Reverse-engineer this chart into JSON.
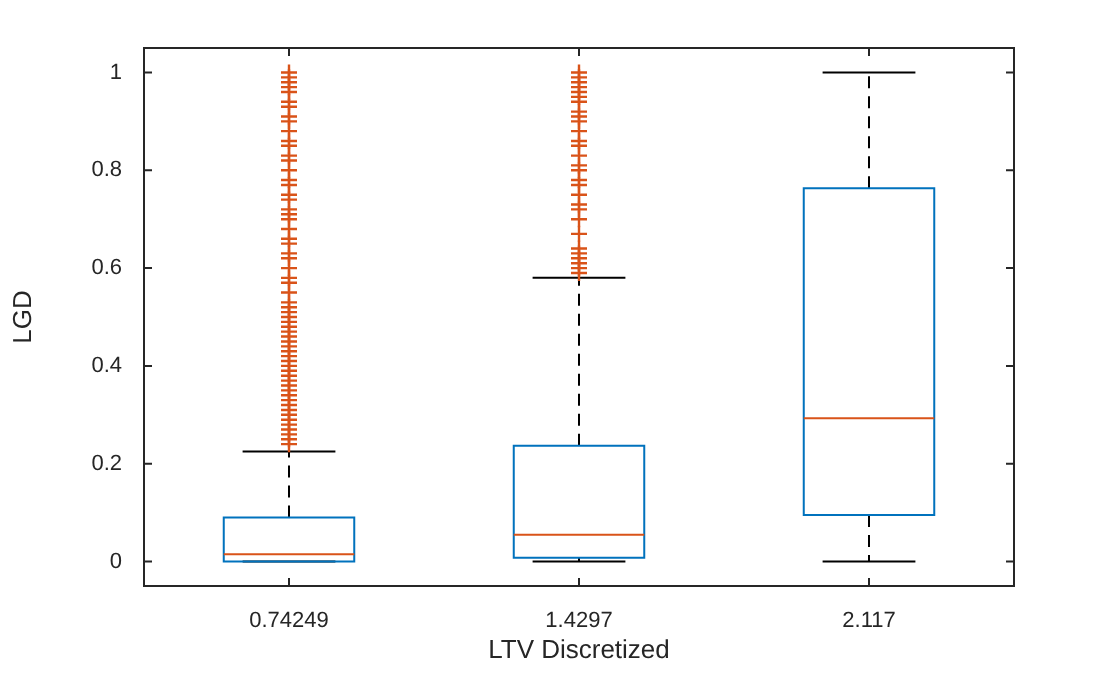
{
  "chart_data": {
    "type": "box",
    "xlabel": "LTV Discretized",
    "ylabel": "LGD",
    "categories": [
      "0.74249",
      "1.4297",
      "2.117"
    ],
    "color": "#0072bd",
    "marker": "cross",
    "ylim": [
      -0.05,
      1.05
    ],
    "yticks": [
      0,
      0.2,
      0.4,
      0.6,
      0.8,
      1
    ],
    "boxes": [
      {
        "low": 0,
        "q1": 0,
        "median": 0.015,
        "q3": 0.09,
        "high": 0.225,
        "outliers": [
          0.24,
          0.25,
          0.26,
          0.27,
          0.28,
          0.29,
          0.3,
          0.31,
          0.32,
          0.33,
          0.34,
          0.35,
          0.36,
          0.37,
          0.38,
          0.39,
          0.4,
          0.41,
          0.42,
          0.43,
          0.44,
          0.45,
          0.46,
          0.47,
          0.48,
          0.49,
          0.5,
          0.51,
          0.52,
          0.53,
          0.55,
          0.57,
          0.58,
          0.6,
          0.62,
          0.63,
          0.65,
          0.66,
          0.68,
          0.7,
          0.71,
          0.72,
          0.74,
          0.75,
          0.77,
          0.78,
          0.8,
          0.82,
          0.83,
          0.85,
          0.86,
          0.88,
          0.9,
          0.91,
          0.93,
          0.94,
          0.96,
          0.97,
          0.98,
          0.99,
          1
        ]
      },
      {
        "low": 0,
        "q1": 0.008,
        "median": 0.055,
        "q3": 0.237,
        "high": 0.58,
        "outliers": [
          0.59,
          0.6,
          0.61,
          0.62,
          0.63,
          0.64,
          0.67,
          0.7,
          0.72,
          0.73,
          0.75,
          0.77,
          0.78,
          0.8,
          0.81,
          0.83,
          0.85,
          0.86,
          0.88,
          0.9,
          0.91,
          0.92,
          0.94,
          0.95,
          0.96,
          0.97,
          0.98,
          0.99,
          1
        ]
      },
      {
        "low": 0,
        "q1": 0.095,
        "median": 0.293,
        "q3": 0.763,
        "high": 1
      }
    ]
  }
}
